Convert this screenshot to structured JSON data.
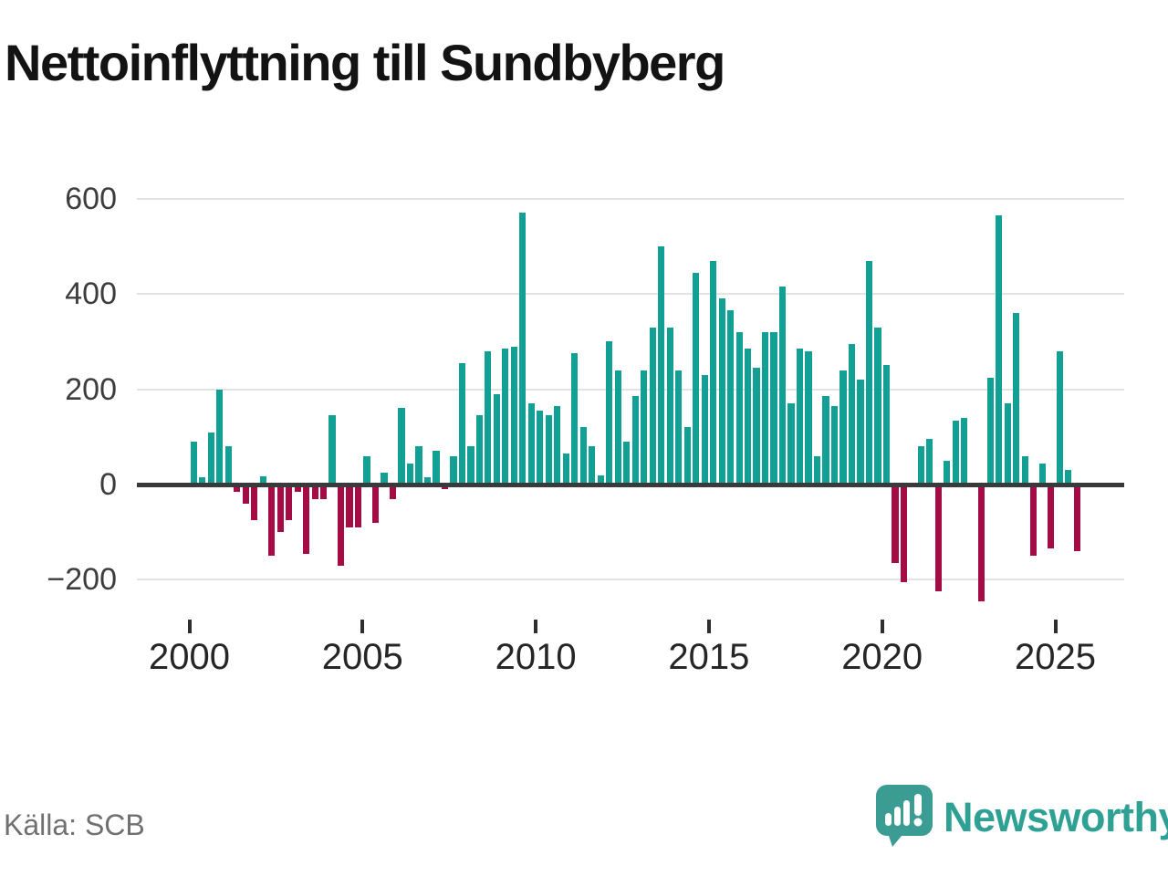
{
  "title": "Nettoinflyttning till Sundbyberg",
  "source": "Källa: SCB",
  "branding": {
    "name": "Newsworthy"
  },
  "chart_data": {
    "type": "bar",
    "title": "Nettoinflyttning till Sundbyberg",
    "period": "quarterly",
    "start": "2000-Q1",
    "end": "2025-Q3",
    "values": [
      90,
      15,
      110,
      200,
      80,
      -15,
      -40,
      -75,
      18,
      -150,
      -100,
      -75,
      -15,
      -145,
      -30,
      -30,
      145,
      -170,
      -90,
      -90,
      60,
      -80,
      25,
      -30,
      160,
      45,
      80,
      15,
      70,
      -10,
      60,
      255,
      80,
      145,
      280,
      190,
      285,
      290,
      570,
      170,
      155,
      145,
      165,
      65,
      275,
      120,
      80,
      20,
      300,
      240,
      90,
      185,
      240,
      330,
      500,
      330,
      240,
      120,
      445,
      230,
      470,
      390,
      365,
      320,
      285,
      245,
      320,
      320,
      415,
      170,
      285,
      280,
      60,
      185,
      165,
      240,
      295,
      220,
      470,
      330,
      250,
      -165,
      -205,
      0,
      80,
      95,
      -225,
      50,
      135,
      140,
      0,
      -245,
      225,
      565,
      170,
      360,
      60,
      -150,
      45,
      -135,
      280,
      30,
      -140
    ],
    "yticks": [
      600,
      400,
      200,
      0,
      -200
    ],
    "ytick_labels": [
      "600",
      "400",
      "200",
      "0",
      "−200"
    ],
    "xticks_years": [
      2000,
      2005,
      2010,
      2015,
      2020,
      2025
    ],
    "xtick_labels": [
      "2000",
      "2005",
      "2010",
      "2015",
      "2020",
      "2025"
    ],
    "ylim": [
      -260,
      620
    ],
    "grid": true,
    "legend": false,
    "colors": {
      "positive": "#12a095",
      "negative": "#a50b45",
      "axis": "#3a3a3a",
      "grid": "#e3e3e3"
    }
  }
}
